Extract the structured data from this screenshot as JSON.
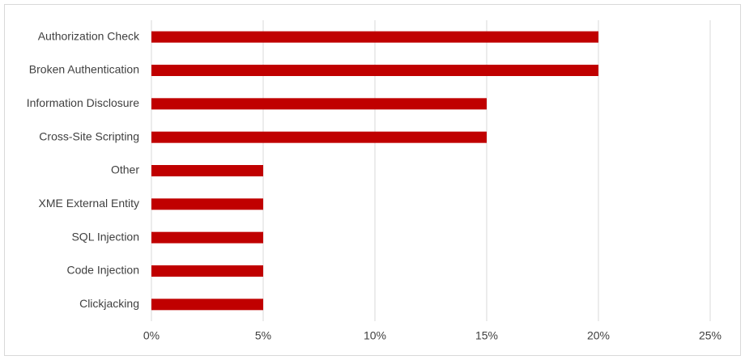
{
  "chart_data": {
    "type": "bar",
    "orientation": "horizontal",
    "categories": [
      "Authorization Check",
      "Broken Authentication",
      "Information Disclosure",
      "Cross-Site Scripting",
      "Other",
      "XME External Entity",
      "SQL Injection",
      "Code Injection",
      "Clickjacking"
    ],
    "values": [
      20,
      20,
      15,
      15,
      5,
      5,
      5,
      5,
      5
    ],
    "color": "#c00000",
    "xlim": [
      0,
      25
    ],
    "xticks": [
      {
        "value": 0,
        "label": "0%"
      },
      {
        "value": 5,
        "label": "5%"
      },
      {
        "value": 10,
        "label": "10%"
      },
      {
        "value": 15,
        "label": "15%"
      },
      {
        "value": 20,
        "label": "20%"
      },
      {
        "value": 25,
        "label": "25%"
      }
    ],
    "grid": true
  }
}
